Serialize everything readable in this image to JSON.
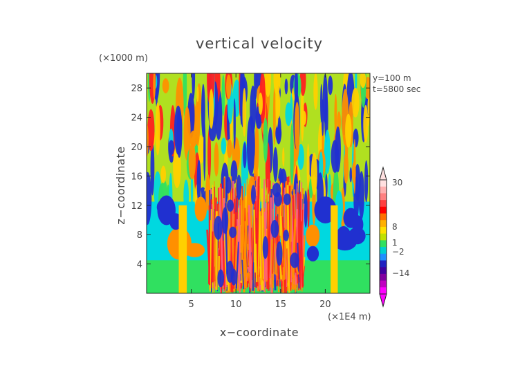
{
  "chart_data": {
    "type": "heatmap",
    "title": "vertical velocity",
    "xlabel": "x−coordinate",
    "ylabel": "z−coordinate",
    "x_unit": "(×1E4 m)",
    "y_unit": "(×1000 m)",
    "annotations": [
      "y=100  m",
      "t=5800  sec"
    ],
    "x_range": [
      0,
      25
    ],
    "y_range": [
      0,
      30
    ],
    "x_ticks": [
      5,
      10,
      15,
      20
    ],
    "x_tick_labels": [
      "5",
      "10",
      "15",
      "20"
    ],
    "y_ticks": [
      4,
      8,
      12,
      16,
      20,
      24,
      28
    ],
    "y_tick_labels": [
      "4",
      "8",
      "12",
      "16",
      "20",
      "24",
      "28"
    ],
    "grid": false,
    "colorbar": {
      "position": "right",
      "tick_values": [
        30,
        8,
        1,
        -2,
        -14
      ],
      "tick_labels": [
        "30",
        "8",
        "1",
        "−2",
        "−14"
      ],
      "colors": [
        "#ffe0e0",
        "#ffb0b0",
        "#ff8080",
        "#ff4040",
        "#ff0000",
        "#ff7000",
        "#ffb000",
        "#ffe000",
        "#c0e000",
        "#30e060",
        "#00d0d0",
        "#2090ff",
        "#2020c0",
        "#4000a0",
        "#8000a0",
        "#c000c0",
        "#ff00ff"
      ]
    }
  }
}
